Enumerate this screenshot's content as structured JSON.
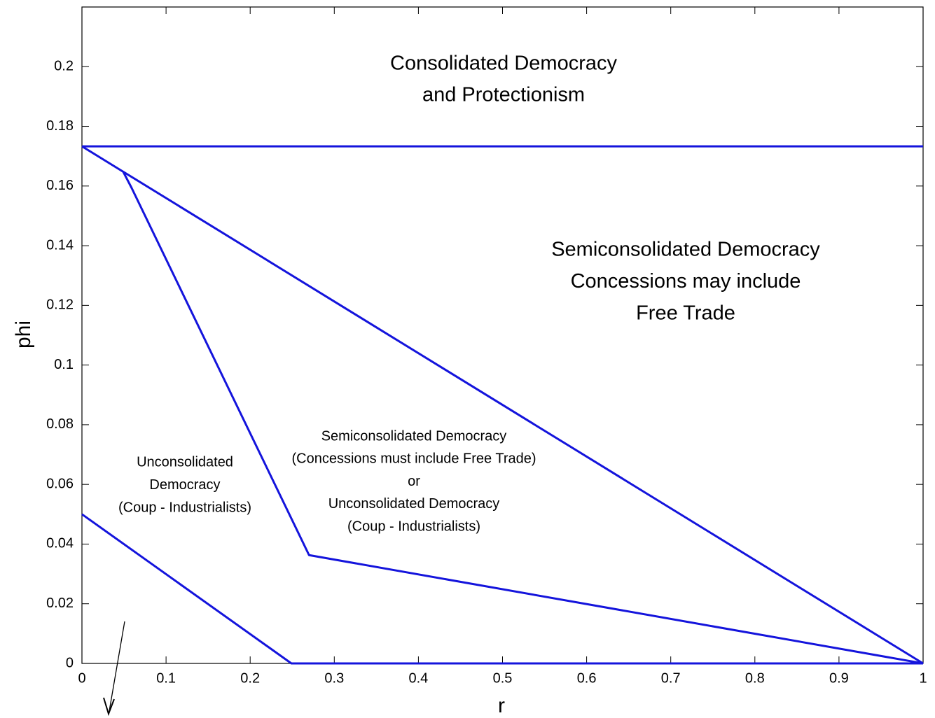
{
  "chart_data": {
    "type": "line",
    "x_label": "r",
    "y_label": "phi",
    "xlim": [
      0,
      1
    ],
    "ylim": [
      0,
      0.22
    ],
    "xticks": [
      0,
      0.1,
      0.2,
      0.3,
      0.4,
      0.5,
      0.6,
      0.7,
      0.8,
      0.9,
      1
    ],
    "yticks": [
      0,
      0.02,
      0.04,
      0.06,
      0.08,
      0.1,
      0.12,
      0.14,
      0.16,
      0.18,
      0.2
    ],
    "series": [
      {
        "color": "#1414dc",
        "x": [
          0,
          1
        ],
        "values": [
          0.1733,
          0.1733
        ]
      },
      {
        "color": "#1414dc",
        "x": [
          0,
          0.049,
          1
        ],
        "values": [
          0.1733,
          0.1648,
          0
        ]
      },
      {
        "color": "#1414dc",
        "x": [
          0.049,
          0.059,
          0.27,
          1
        ],
        "values": [
          0.1648,
          0.1594,
          0.0363,
          0
        ]
      },
      {
        "color": "#1414dc",
        "x": [
          0,
          0.249,
          0.255,
          1
        ],
        "values": [
          0.05,
          0,
          0,
          0
        ]
      }
    ],
    "annotations": [
      {
        "lines": [
          "Consolidated Democracy",
          "and Protectionism"
        ]
      },
      {
        "lines": [
          "Semiconsolidated Democracy",
          "Concessions may include",
          "Free Trade"
        ]
      },
      {
        "lines": [
          "Semiconsolidated Democracy",
          "(Concessions must include Free Trade)",
          "or",
          "Unconsolidated Democracy",
          "(Coup - Industrialists)"
        ]
      },
      {
        "lines": [
          "Unconsolidated",
          "Democracy",
          "(Coup - Industrialists)"
        ]
      }
    ]
  }
}
